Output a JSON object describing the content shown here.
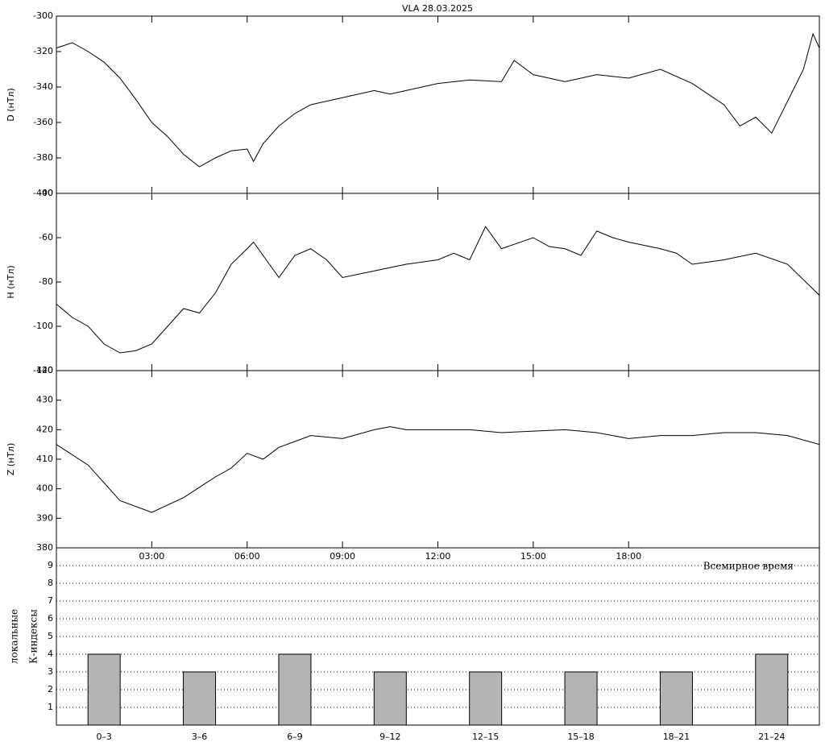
{
  "chart_data": [
    {
      "type": "line",
      "title": "VLA   28.03.2025",
      "ylabel": "D (нТл)",
      "color": "#000000",
      "x": [
        0,
        0.5,
        1,
        1.5,
        2,
        2.5,
        3,
        3.5,
        4,
        4.5,
        5,
        5.5,
        6,
        6.2,
        6.5,
        7,
        7.5,
        8,
        9,
        10,
        10.5,
        11,
        12,
        13,
        14,
        14.4,
        15,
        16,
        17,
        18,
        19,
        20,
        21,
        21.5,
        22,
        22.5,
        23,
        23.5,
        23.8,
        24
      ],
      "values": [
        -318,
        -315,
        -320,
        -326,
        -335,
        -347,
        -360,
        -368,
        -378,
        -385,
        -380,
        -376,
        -375,
        -382,
        -372,
        -362,
        -355,
        -350,
        -346,
        -342,
        -344,
        -342,
        -338,
        -336,
        -337,
        -325,
        -333,
        -337,
        -333,
        -335,
        -330,
        -338,
        -350,
        -362,
        -357,
        -366,
        -348,
        -330,
        -310,
        -318
      ],
      "xlim": [
        0,
        24
      ],
      "ylim": [
        -300,
        -400
      ],
      "yticks": [
        -300,
        -320,
        -340,
        -360,
        -380,
        -400
      ]
    },
    {
      "type": "line",
      "ylabel": "H (нТл)",
      "color": "#000000",
      "x": [
        0,
        0.5,
        1,
        1.5,
        2,
        2.5,
        3,
        3.5,
        4,
        4.5,
        5,
        5.5,
        6,
        6.2,
        6.7,
        7,
        7.5,
        8,
        8.5,
        9,
        10,
        11,
        12,
        12.5,
        13,
        13.5,
        14,
        15,
        15.5,
        16,
        16.5,
        17,
        17.5,
        18,
        19,
        19.5,
        20,
        21,
        22,
        23,
        24
      ],
      "values": [
        -90,
        -96,
        -100,
        -108,
        -112,
        -111,
        -108,
        -100,
        -92,
        -94,
        -85,
        -72,
        -65,
        -62,
        -72,
        -78,
        -68,
        -65,
        -70,
        -78,
        -75,
        -72,
        -70,
        -67,
        -70,
        -55,
        -65,
        -60,
        -64,
        -65,
        -68,
        -57,
        -60,
        -62,
        -65,
        -67,
        -72,
        -70,
        -67,
        -72,
        -86
      ],
      "xlim": [
        0,
        24
      ],
      "ylim": [
        -40,
        -120
      ],
      "yticks": [
        -40,
        -60,
        -80,
        -100,
        -120
      ]
    },
    {
      "type": "line",
      "ylabel": "Z (нТл)",
      "color": "#000000",
      "xlabel": "Всемирное время",
      "x": [
        0,
        1,
        1.5,
        2,
        3,
        4,
        5,
        5.5,
        6,
        6.5,
        7,
        8,
        9,
        10,
        10.5,
        11,
        13,
        14,
        16,
        17,
        18,
        19,
        20,
        21,
        22,
        23,
        24
      ],
      "values": [
        415,
        408,
        402,
        396,
        392,
        397,
        404,
        407,
        412,
        410,
        414,
        418,
        417,
        420,
        421,
        420,
        420,
        419,
        420,
        419,
        417,
        418,
        418,
        419,
        419,
        418,
        415
      ],
      "xlim": [
        0,
        24
      ],
      "ylim": [
        380,
        440
      ],
      "yticks": [
        380,
        390,
        400,
        410,
        420,
        430,
        440
      ],
      "xticks": [
        {
          "value": 3,
          "label": "03:00"
        },
        {
          "value": 6,
          "label": "06:00"
        },
        {
          "value": 9,
          "label": "09:00"
        },
        {
          "value": 12,
          "label": "12:00"
        },
        {
          "value": 15,
          "label": "15:00"
        },
        {
          "value": 18,
          "label": "18:00"
        }
      ]
    },
    {
      "type": "bar",
      "ylabel": [
        "локальные",
        "К-индексы"
      ],
      "color": "#b4b4b4",
      "grid": true,
      "categories": [
        "0–3",
        "3–6",
        "6–9",
        "9–12",
        "12–15",
        "15–18",
        "18–21",
        "21–24"
      ],
      "values": [
        4,
        3,
        4,
        3,
        3,
        3,
        3,
        4
      ],
      "ylim": [
        0,
        10
      ],
      "yticks": [
        1,
        2,
        3,
        4,
        5,
        6,
        7,
        8,
        9
      ]
    }
  ]
}
